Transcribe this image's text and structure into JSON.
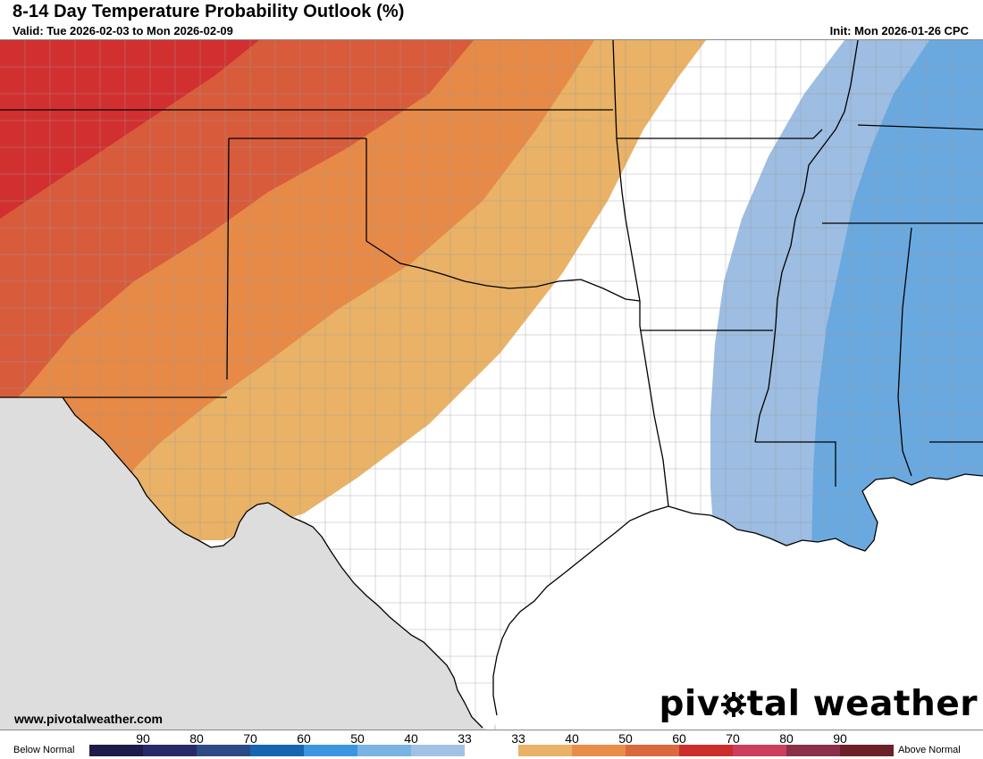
{
  "header": {
    "title": "8-14 Day Temperature Probability Outlook (%)",
    "valid": "Valid: Tue 2026-02-03 to Mon 2026-02-09",
    "init": "Init: Mon 2026-01-26 CPC"
  },
  "footer": {
    "website": "www.pivotalweather.com",
    "brand_left": "piv",
    "brand_right": "tal weather"
  },
  "legend": {
    "left_label": "Below Normal",
    "right_label": "Above Normal",
    "ticks": [
      "90",
      "80",
      "70",
      "60",
      "50",
      "40",
      "33",
      "33",
      "40",
      "50",
      "60",
      "70",
      "80",
      "90"
    ],
    "colors": [
      "#1e1a4a",
      "#262a66",
      "#2c4a86",
      "#1565b0",
      "#3c96df",
      "#78b3e4",
      "#a2c2e5",
      "#ffffff",
      "#e9b266",
      "#e98e48",
      "#da6a3e",
      "#cc2d2d",
      "#cc3f5d",
      "#8a3048",
      "#6c2028"
    ]
  },
  "map": {
    "categories": [
      {
        "name": "above-60-70",
        "color": "#d23030"
      },
      {
        "name": "above-50-60",
        "color": "#d85c3c"
      },
      {
        "name": "above-40-50",
        "color": "#e78a47"
      },
      {
        "name": "above-33-40",
        "color": "#e9b266"
      },
      {
        "name": "below-33-40",
        "color": "#9dbde2"
      },
      {
        "name": "below-40-50",
        "color": "#6aa9e0"
      }
    ],
    "colors": {
      "land": "#ffffff",
      "outside": "#dddddd",
      "water": "#ffffff",
      "county_border": "#888888",
      "state_border": "#000000"
    }
  }
}
